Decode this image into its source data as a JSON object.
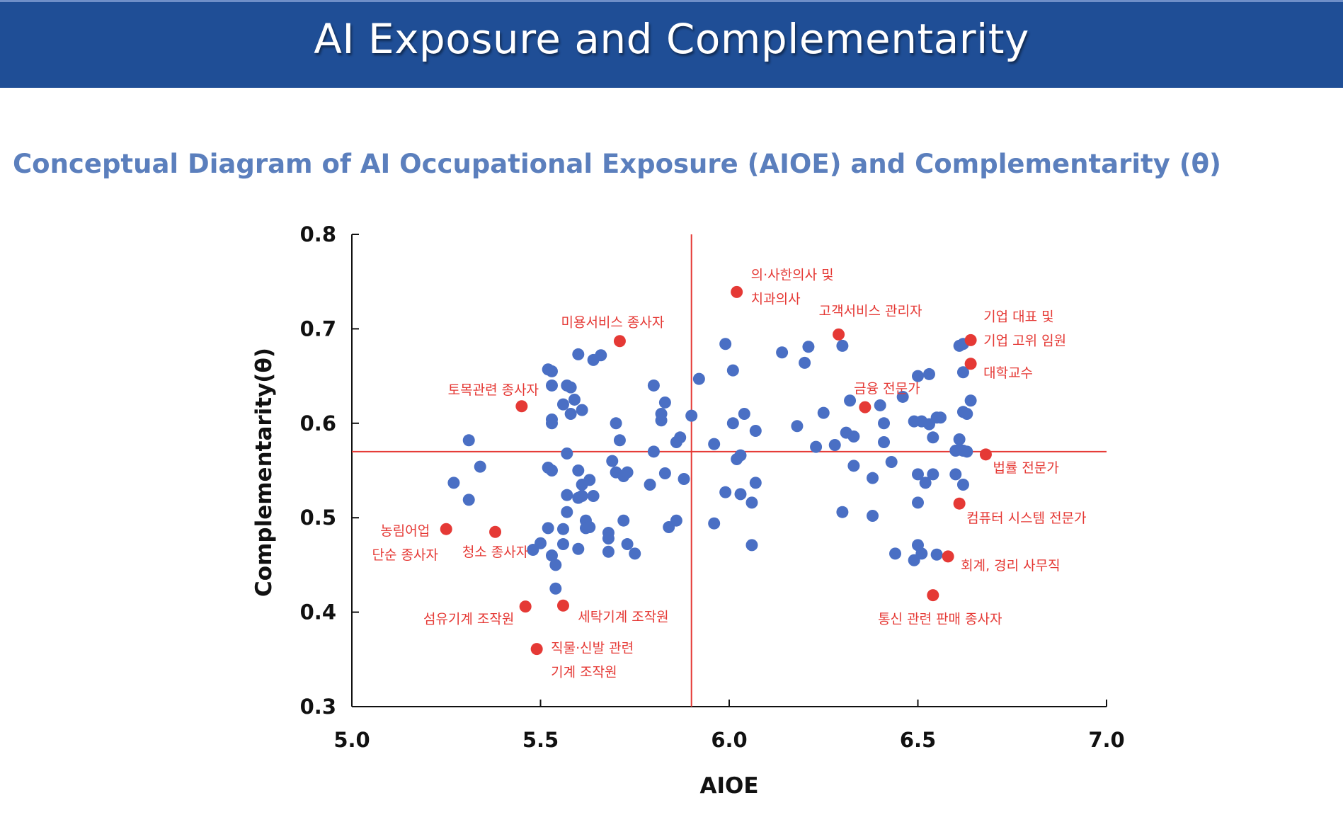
{
  "header": {
    "title": "AI Exposure and Complementarity"
  },
  "subtitle": "Conceptual Diagram of AI Occupational Exposure (AIOE) and Complementarity (θ)",
  "colors": {
    "header_bg": "#1f4e96",
    "subtitle": "#5b7fbd",
    "blue_points": "#4a6fc4",
    "red_points": "#e53935",
    "reference_lines": "#e53935",
    "axes": "#111111"
  },
  "chart_data": {
    "type": "scatter",
    "xlabel": "AIOE",
    "ylabel": "Complementarity(θ)",
    "xlim": [
      5.0,
      7.0
    ],
    "ylim": [
      0.3,
      0.8
    ],
    "xticks": [
      "5.0",
      "5.5",
      "6.0",
      "6.5",
      "7.0"
    ],
    "yticks": [
      "0.3",
      "0.4",
      "0.5",
      "0.6",
      "0.7",
      "0.8"
    ],
    "grid": false,
    "reference_lines": {
      "x": 5.9,
      "y": 0.57
    },
    "highlighted": [
      {
        "x": 6.02,
        "y": 0.739,
        "label": [
          "의·사한의사 및",
          "치과의사"
        ]
      },
      {
        "x": 5.71,
        "y": 0.687,
        "label": [
          "미용서비스 종사자"
        ]
      },
      {
        "x": 6.29,
        "y": 0.694,
        "label": [
          "고객서비스 관리자"
        ]
      },
      {
        "x": 6.64,
        "y": 0.688,
        "label": [
          "기업 대표 및",
          "기업 고위 임원"
        ]
      },
      {
        "x": 6.64,
        "y": 0.663,
        "label": [
          "대학교수"
        ]
      },
      {
        "x": 5.45,
        "y": 0.618,
        "label": [
          "토목관련 종사자"
        ]
      },
      {
        "x": 6.36,
        "y": 0.617,
        "label": [
          "금융 전문가"
        ]
      },
      {
        "x": 6.68,
        "y": 0.567,
        "label": [
          "법률 전문가"
        ]
      },
      {
        "x": 6.61,
        "y": 0.515,
        "label": [
          "컴퓨터 시스템 전문가"
        ]
      },
      {
        "x": 5.25,
        "y": 0.488,
        "label": [
          "농림어업",
          "단순 종사자"
        ]
      },
      {
        "x": 5.38,
        "y": 0.485,
        "label": [
          "청소 종사자"
        ]
      },
      {
        "x": 6.58,
        "y": 0.459,
        "label": [
          "회계, 경리 사무직"
        ]
      },
      {
        "x": 6.54,
        "y": 0.418,
        "label": [
          "통신 관련 판매 종사자"
        ]
      },
      {
        "x": 5.46,
        "y": 0.406,
        "label": [
          "섬유기계 조작원"
        ]
      },
      {
        "x": 5.56,
        "y": 0.407,
        "label": [
          "세탁기계 조작원"
        ]
      },
      {
        "x": 5.49,
        "y": 0.361,
        "label": [
          "직물·신발 관련",
          "기계 조작원"
        ]
      }
    ],
    "points": [
      [
        5.31,
        0.582
      ],
      [
        5.27,
        0.537
      ],
      [
        5.31,
        0.519
      ],
      [
        5.34,
        0.554
      ],
      [
        5.52,
        0.657
      ],
      [
        5.53,
        0.655
      ],
      [
        5.53,
        0.64
      ],
      [
        5.53,
        0.604
      ],
      [
        5.53,
        0.6
      ],
      [
        5.56,
        0.62
      ],
      [
        5.57,
        0.64
      ],
      [
        5.58,
        0.638
      ],
      [
        5.58,
        0.61
      ],
      [
        5.59,
        0.625
      ],
      [
        5.61,
        0.614
      ],
      [
        5.6,
        0.673
      ],
      [
        5.64,
        0.667
      ],
      [
        5.66,
        0.672
      ],
      [
        5.57,
        0.568
      ],
      [
        5.52,
        0.553
      ],
      [
        5.53,
        0.55
      ],
      [
        5.6,
        0.55
      ],
      [
        5.61,
        0.535
      ],
      [
        5.63,
        0.54
      ],
      [
        5.57,
        0.524
      ],
      [
        5.6,
        0.521
      ],
      [
        5.61,
        0.523
      ],
      [
        5.64,
        0.523
      ],
      [
        5.57,
        0.506
      ],
      [
        5.62,
        0.497
      ],
      [
        5.62,
        0.489
      ],
      [
        5.63,
        0.49
      ],
      [
        5.52,
        0.489
      ],
      [
        5.56,
        0.488
      ],
      [
        5.56,
        0.472
      ],
      [
        5.5,
        0.473
      ],
      [
        5.48,
        0.466
      ],
      [
        5.53,
        0.46
      ],
      [
        5.6,
        0.467
      ],
      [
        5.54,
        0.45
      ],
      [
        5.54,
        0.425
      ],
      [
        5.68,
        0.484
      ],
      [
        5.68,
        0.478
      ],
      [
        5.68,
        0.464
      ],
      [
        5.72,
        0.497
      ],
      [
        5.73,
        0.472
      ],
      [
        5.75,
        0.462
      ],
      [
        5.69,
        0.56
      ],
      [
        5.7,
        0.548
      ],
      [
        5.72,
        0.544
      ],
      [
        5.73,
        0.548
      ],
      [
        5.7,
        0.6
      ],
      [
        5.71,
        0.582
      ],
      [
        5.79,
        0.535
      ],
      [
        5.8,
        0.57
      ],
      [
        5.8,
        0.64
      ],
      [
        5.82,
        0.603
      ],
      [
        5.82,
        0.61
      ],
      [
        5.83,
        0.622
      ],
      [
        5.83,
        0.547
      ],
      [
        5.84,
        0.49
      ],
      [
        5.86,
        0.497
      ],
      [
        5.86,
        0.58
      ],
      [
        5.87,
        0.585
      ],
      [
        5.88,
        0.541
      ],
      [
        5.9,
        0.608
      ],
      [
        5.92,
        0.647
      ],
      [
        5.96,
        0.578
      ],
      [
        5.96,
        0.494
      ],
      [
        5.99,
        0.527
      ],
      [
        5.99,
        0.684
      ],
      [
        6.01,
        0.656
      ],
      [
        6.01,
        0.6
      ],
      [
        6.02,
        0.562
      ],
      [
        6.03,
        0.566
      ],
      [
        6.03,
        0.525
      ],
      [
        6.04,
        0.61
      ],
      [
        6.06,
        0.516
      ],
      [
        6.07,
        0.592
      ],
      [
        6.07,
        0.537
      ],
      [
        6.06,
        0.471
      ],
      [
        6.14,
        0.675
      ],
      [
        6.18,
        0.597
      ],
      [
        6.2,
        0.664
      ],
      [
        6.21,
        0.681
      ],
      [
        6.23,
        0.575
      ],
      [
        6.25,
        0.611
      ],
      [
        6.28,
        0.577
      ],
      [
        6.3,
        0.682
      ],
      [
        6.3,
        0.506
      ],
      [
        6.31,
        0.59
      ],
      [
        6.32,
        0.624
      ],
      [
        6.33,
        0.586
      ],
      [
        6.33,
        0.555
      ],
      [
        6.38,
        0.542
      ],
      [
        6.38,
        0.502
      ],
      [
        6.4,
        0.619
      ],
      [
        6.41,
        0.6
      ],
      [
        6.41,
        0.58
      ],
      [
        6.43,
        0.559
      ],
      [
        6.44,
        0.462
      ],
      [
        6.46,
        0.628
      ],
      [
        6.49,
        0.602
      ],
      [
        6.5,
        0.65
      ],
      [
        6.51,
        0.602
      ],
      [
        6.53,
        0.599
      ],
      [
        6.53,
        0.652
      ],
      [
        6.54,
        0.585
      ],
      [
        6.54,
        0.546
      ],
      [
        6.52,
        0.537
      ],
      [
        6.5,
        0.546
      ],
      [
        6.5,
        0.516
      ],
      [
        6.5,
        0.471
      ],
      [
        6.51,
        0.462
      ],
      [
        6.49,
        0.455
      ],
      [
        6.55,
        0.606
      ],
      [
        6.56,
        0.606
      ],
      [
        6.55,
        0.461
      ],
      [
        6.6,
        0.546
      ],
      [
        6.61,
        0.583
      ],
      [
        6.61,
        0.572
      ],
      [
        6.62,
        0.571
      ],
      [
        6.63,
        0.57
      ],
      [
        6.62,
        0.535
      ],
      [
        6.61,
        0.682
      ],
      [
        6.62,
        0.684
      ],
      [
        6.62,
        0.654
      ],
      [
        6.62,
        0.612
      ],
      [
        6.63,
        0.61
      ],
      [
        6.64,
        0.624
      ],
      [
        6.6,
        0.571
      ]
    ]
  }
}
